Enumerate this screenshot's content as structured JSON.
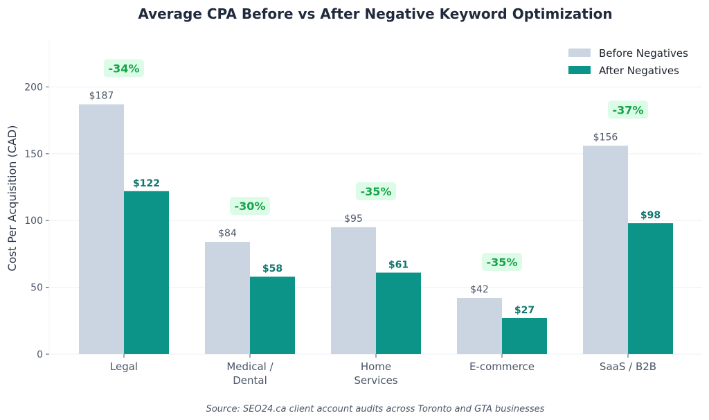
{
  "chart_data": {
    "type": "bar",
    "title": "Average CPA Before vs After Negative Keyword Optimization",
    "ylabel": "Cost Per Acquisition (CAD)",
    "xlabel": "",
    "ylim": [
      0,
      235
    ],
    "yticks": [
      "0",
      "50",
      "100",
      "150",
      "200"
    ],
    "yticks_values": [
      0,
      50,
      100,
      150,
      200
    ],
    "grid": true,
    "legend_position": "top-right",
    "categories": [
      [
        "Legal"
      ],
      [
        "Medical /",
        "Dental"
      ],
      [
        "Home",
        "Services"
      ],
      [
        "E-commerce"
      ],
      [
        "SaaS / B2B"
      ]
    ],
    "series": [
      {
        "name": "Before Negatives",
        "color": "#cbd5e1",
        "values": [
          187,
          84,
          95,
          42,
          156
        ],
        "labels": [
          "$187",
          "$84",
          "$95",
          "$42",
          "$156"
        ]
      },
      {
        "name": "After Negatives",
        "color": "#0d9488",
        "values": [
          122,
          58,
          61,
          27,
          98
        ],
        "labels": [
          "$122",
          "$58",
          "$61",
          "$27",
          "$98"
        ]
      }
    ],
    "change_labels": [
      "-34%",
      "-30%",
      "-35%",
      "-35%",
      "-37%"
    ],
    "change_badge_color": "#dcfce7",
    "change_text_color": "#16a34a",
    "source": "Source: SEO24.ca client account audits across Toronto and GTA businesses"
  }
}
